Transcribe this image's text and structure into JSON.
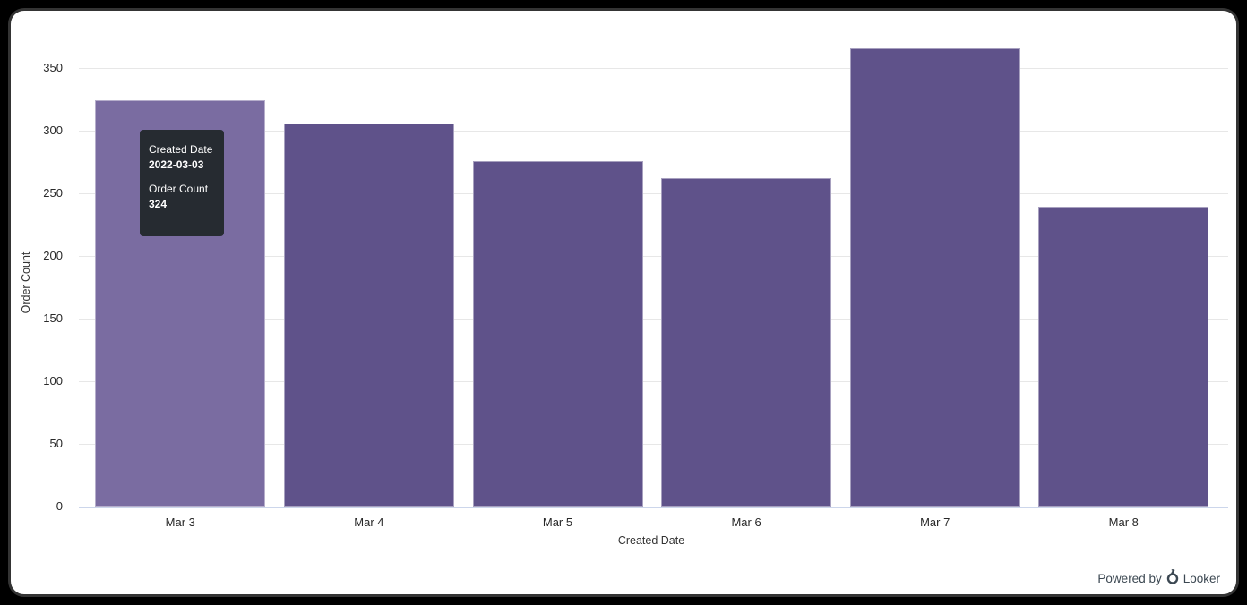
{
  "colors": {
    "bar": "#5f528a",
    "bar_highlight": "#7a6ca1",
    "gridline": "#e7e7e7",
    "axis_line": "#ccd6eb",
    "tick_text": "#282828",
    "tooltip_bg": "#262b31",
    "tooltip_text": "#ffffff",
    "powered_by_text": "#3c4852"
  },
  "chart_data": {
    "type": "bar",
    "title": "",
    "categories": [
      "Mar 3",
      "Mar 4",
      "Mar 5",
      "Mar 6",
      "Mar 7",
      "Mar 8"
    ],
    "series": [
      {
        "name": "Order Count",
        "values": [
          324,
          306,
          276,
          262,
          366,
          239
        ]
      }
    ],
    "xlabel": "Created Date",
    "ylabel": "Order Count",
    "ylim": [
      0,
      375
    ],
    "yticks": [
      0,
      50,
      100,
      150,
      200,
      250,
      300,
      350
    ],
    "grid": true,
    "legend_position": "none",
    "highlighted_index": 0
  },
  "tooltip": {
    "field1_label": "Created Date",
    "field1_value": "2022-03-03",
    "field2_label": "Order Count",
    "field2_value": "324"
  },
  "footer": {
    "powered_by": "Powered by",
    "brand": "Looker",
    "logo_icon": "looker-logo-icon"
  }
}
